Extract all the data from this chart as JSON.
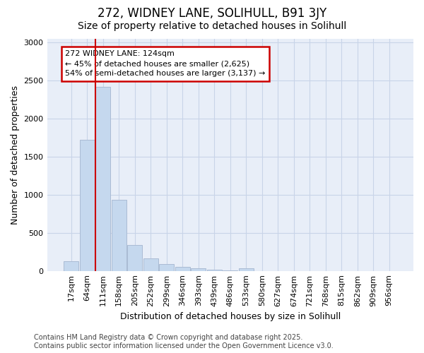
{
  "title": "272, WIDNEY LANE, SOLIHULL, B91 3JY",
  "subtitle": "Size of property relative to detached houses in Solihull",
  "xlabel": "Distribution of detached houses by size in Solihull",
  "ylabel": "Number of detached properties",
  "categories": [
    "17sqm",
    "64sqm",
    "111sqm",
    "158sqm",
    "205sqm",
    "252sqm",
    "299sqm",
    "346sqm",
    "393sqm",
    "439sqm",
    "486sqm",
    "533sqm",
    "580sqm",
    "627sqm",
    "674sqm",
    "721sqm",
    "768sqm",
    "815sqm",
    "862sqm",
    "909sqm",
    "956sqm"
  ],
  "values": [
    125,
    1720,
    2420,
    930,
    340,
    160,
    90,
    55,
    30,
    18,
    5,
    30,
    0,
    0,
    0,
    0,
    0,
    0,
    0,
    0,
    0
  ],
  "bar_color": "#c5d8ee",
  "bar_edgecolor": "#aabbd4",
  "vline_x_idx": 2,
  "vline_color": "#cc0000",
  "annotation_text": "272 WIDNEY LANE: 124sqm\n← 45% of detached houses are smaller (2,625)\n54% of semi-detached houses are larger (3,137) →",
  "annotation_box_facecolor": "#ffffff",
  "annotation_box_edgecolor": "#cc0000",
  "ylim": [
    0,
    3050
  ],
  "yticks": [
    0,
    500,
    1000,
    1500,
    2000,
    2500,
    3000
  ],
  "grid_color": "#c8d4e8",
  "bg_color": "#ffffff",
  "plot_bg_color": "#e8eef8",
  "footer": "Contains HM Land Registry data © Crown copyright and database right 2025.\nContains public sector information licensed under the Open Government Licence v3.0.",
  "title_fontsize": 12,
  "subtitle_fontsize": 10,
  "xlabel_fontsize": 9,
  "ylabel_fontsize": 9,
  "tick_fontsize": 8,
  "footer_fontsize": 7,
  "annot_fontsize": 8
}
